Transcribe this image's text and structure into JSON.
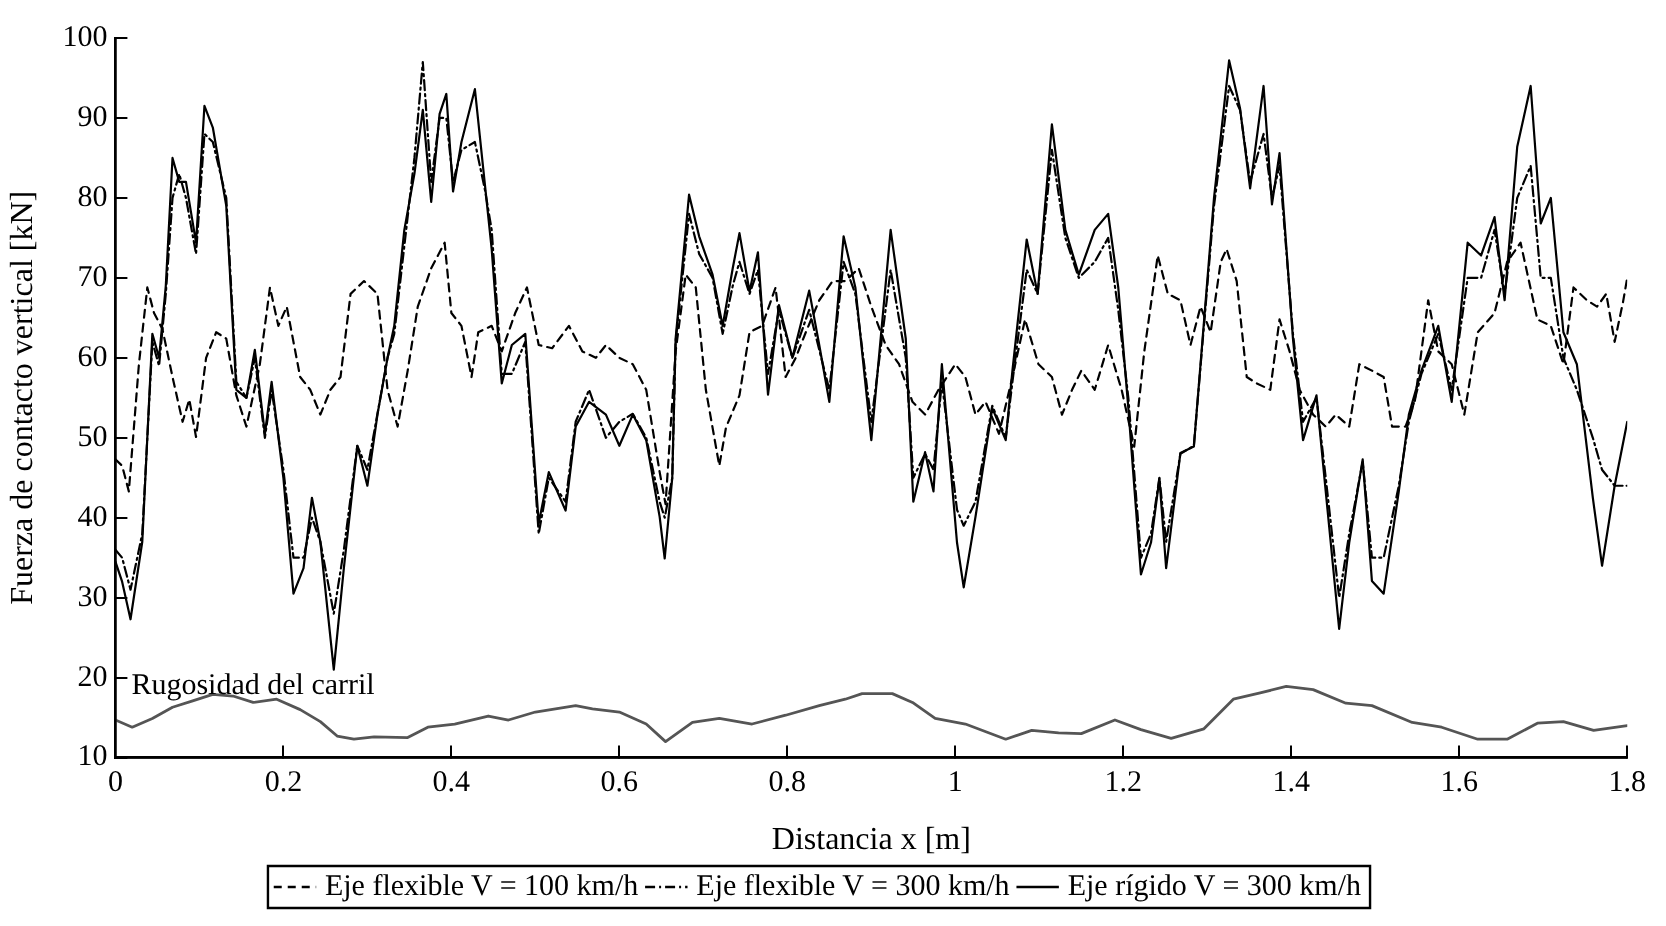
{
  "chart_data": {
    "type": "line",
    "xlabel": "Distancia x [m]",
    "ylabel": "Fuerza de contacto vertical [kN]",
    "xlim": [
      0,
      1.8
    ],
    "xticks": [
      0,
      0.2,
      0.4,
      0.6,
      0.8,
      1,
      1.2,
      1.4,
      1.6,
      1.8
    ],
    "ylim": [
      10,
      100
    ],
    "yticks": [
      10,
      20,
      30,
      40,
      50,
      60,
      70,
      80,
      90,
      100
    ],
    "grid": false,
    "legend": "bottom",
    "marker": "none",
    "annotations": [
      "Rugosidad del carril"
    ],
    "series": [
      {
        "name": "Eje flexible V = 100 km/h",
        "color": "#000000",
        "line_style": "dashed",
        "x": [
          0,
          0.008,
          0.016,
          0.028,
          0.038,
          0.046,
          0.056,
          0.068,
          0.08,
          0.088,
          0.096,
          0.108,
          0.12,
          0.132,
          0.144,
          0.156,
          0.172,
          0.184,
          0.194,
          0.204,
          0.22,
          0.232,
          0.244,
          0.256,
          0.268,
          0.28,
          0.296,
          0.312,
          0.324,
          0.336,
          0.348,
          0.36,
          0.376,
          0.392,
          0.4,
          0.412,
          0.424,
          0.432,
          0.448,
          0.46,
          0.476,
          0.49,
          0.504,
          0.52,
          0.54,
          0.556,
          0.572,
          0.584,
          0.6,
          0.616,
          0.632,
          0.648,
          0.655,
          0.667,
          0.679,
          0.691,
          0.703,
          0.719,
          0.727,
          0.743,
          0.755,
          0.77,
          0.786,
          0.798,
          0.81,
          0.822,
          0.838,
          0.854,
          0.869,
          0.885,
          0.9,
          0.917,
          0.933,
          0.949,
          0.964,
          0.98,
          1.0,
          1.012,
          1.024,
          1.036,
          1.052,
          1.068,
          1.083,
          1.099,
          1.115,
          1.127,
          1.139,
          1.15,
          1.166,
          1.182,
          1.198,
          1.213,
          1.225,
          1.241,
          1.253,
          1.268,
          1.28,
          1.292,
          1.304,
          1.316,
          1.323,
          1.335,
          1.347,
          1.359,
          1.375,
          1.386,
          1.398,
          1.41,
          1.426,
          1.441,
          1.453,
          1.469,
          1.481,
          1.496,
          1.51,
          1.52,
          1.536,
          1.547,
          1.563,
          1.575,
          1.591,
          1.606,
          1.622,
          1.642,
          1.657,
          1.673,
          1.693,
          1.709,
          1.724,
          1.736,
          1.752,
          1.764,
          1.775,
          1.785,
          1.795,
          1.8
        ],
        "values": [
          47.3,
          46.5,
          43.3,
          59.2,
          68.8,
          65.6,
          63.6,
          57.6,
          52,
          54.8,
          50.1,
          60,
          63.2,
          62.4,
          55.3,
          51.4,
          59.2,
          68.8,
          64,
          66.4,
          57.6,
          56,
          52.9,
          56,
          57.6,
          68,
          69.6,
          68,
          56,
          51.4,
          58.4,
          66.4,
          71.2,
          74.4,
          65.6,
          64,
          57.6,
          63.2,
          64,
          60.8,
          65.6,
          68.8,
          61.6,
          61.2,
          64,
          60.8,
          60,
          61.6,
          60,
          59.2,
          56,
          45.7,
          41.7,
          60.8,
          70.4,
          68.8,
          56,
          46.5,
          51.3,
          55.3,
          63.2,
          64,
          68.8,
          57.6,
          60,
          63.2,
          67.2,
          69.6,
          69.6,
          71.2,
          66.4,
          61.6,
          59.2,
          54.5,
          52.9,
          56,
          59.2,
          57.6,
          52.9,
          54.5,
          50.5,
          57.6,
          64.8,
          59.2,
          57.6,
          52.9,
          56,
          58.4,
          56,
          61.6,
          56,
          48.9,
          60.8,
          72.8,
          68,
          67.2,
          61.6,
          66.4,
          63.2,
          72,
          73.6,
          69.6,
          57.6,
          56.8,
          56,
          64.8,
          60.8,
          56,
          52.9,
          51.4,
          52.9,
          51.4,
          59.2,
          58.4,
          57.6,
          51.4,
          51.4,
          54.5,
          67.2,
          60.8,
          59.2,
          52.9,
          63.2,
          65.6,
          72,
          74.4,
          64.8,
          64,
          59.2,
          68.8,
          67.2,
          66.4,
          68,
          62,
          67,
          70
        ]
      },
      {
        "name": "Eje flexible V = 300 km/h",
        "color": "#000000",
        "line_style": "dashdot",
        "x": [
          0,
          0.008,
          0.018,
          0.032,
          0.044,
          0.052,
          0.06,
          0.068,
          0.076,
          0.084,
          0.096,
          0.106,
          0.116,
          0.132,
          0.144,
          0.156,
          0.166,
          0.178,
          0.186,
          0.2,
          0.212,
          0.224,
          0.234,
          0.244,
          0.26,
          0.272,
          0.288,
          0.3,
          0.312,
          0.324,
          0.332,
          0.344,
          0.356,
          0.366,
          0.376,
          0.386,
          0.394,
          0.402,
          0.412,
          0.428,
          0.44,
          0.448,
          0.46,
          0.472,
          0.488,
          0.504,
          0.516,
          0.536,
          0.548,
          0.564,
          0.584,
          0.6,
          0.616,
          0.632,
          0.648,
          0.654,
          0.663,
          0.667,
          0.683,
          0.695,
          0.711,
          0.723,
          0.735,
          0.743,
          0.755,
          0.765,
          0.777,
          0.79,
          0.806,
          0.826,
          0.838,
          0.85,
          0.867,
          0.881,
          0.9,
          0.923,
          0.941,
          0.95,
          0.964,
          0.974,
          0.984,
          1.002,
          1.01,
          1.024,
          1.044,
          1.06,
          1.068,
          1.085,
          1.098,
          1.115,
          1.131,
          1.147,
          1.166,
          1.182,
          1.194,
          1.206,
          1.221,
          1.233,
          1.243,
          1.251,
          1.268,
          1.284,
          1.308,
          1.326,
          1.339,
          1.351,
          1.367,
          1.377,
          1.386,
          1.402,
          1.414,
          1.43,
          1.441,
          1.457,
          1.469,
          1.485,
          1.496,
          1.51,
          1.528,
          1.54,
          1.555,
          1.575,
          1.591,
          1.61,
          1.626,
          1.642,
          1.654,
          1.669,
          1.685,
          1.697,
          1.709,
          1.724,
          1.74,
          1.759,
          1.77,
          1.785,
          1.8
        ],
        "values": [
          36,
          35,
          31,
          38,
          62,
          59,
          68,
          80,
          83,
          80,
          73,
          88,
          87,
          80,
          57,
          55,
          60,
          50,
          56,
          46,
          35,
          35,
          40,
          37,
          28,
          36,
          49,
          46,
          53,
          60,
          63,
          74,
          85,
          97,
          82,
          90,
          90,
          82,
          86,
          87,
          81,
          76,
          58,
          58,
          62,
          38,
          45,
          42,
          52,
          56,
          50,
          52,
          53,
          50,
          42,
          40,
          45,
          62,
          78,
          73,
          70,
          63,
          69,
          72,
          68,
          71,
          58,
          66,
          60,
          66,
          61,
          56,
          72,
          68,
          52,
          71,
          60,
          45,
          48,
          46,
          57,
          41,
          39,
          42,
          54,
          50,
          57,
          71,
          68,
          86,
          75,
          70,
          72,
          75,
          66,
          55,
          35,
          38,
          45,
          37,
          48,
          49,
          79,
          94,
          91,
          82,
          88,
          80,
          84,
          63,
          52,
          55,
          45,
          30,
          38,
          47,
          35,
          35,
          44,
          52,
          58,
          63,
          56,
          70,
          70,
          76,
          68,
          80,
          84,
          70,
          70,
          60,
          56,
          50,
          46,
          44,
          44
        ]
      },
      {
        "name": "Eje rígido V = 300 km/h",
        "color": "#000000",
        "line_style": "solid",
        "x": [
          0,
          0.008,
          0.018,
          0.032,
          0.044,
          0.052,
          0.06,
          0.068,
          0.076,
          0.084,
          0.096,
          0.106,
          0.116,
          0.132,
          0.144,
          0.156,
          0.166,
          0.178,
          0.186,
          0.2,
          0.212,
          0.224,
          0.234,
          0.244,
          0.26,
          0.272,
          0.288,
          0.3,
          0.312,
          0.324,
          0.332,
          0.344,
          0.356,
          0.366,
          0.376,
          0.386,
          0.394,
          0.402,
          0.412,
          0.428,
          0.44,
          0.448,
          0.46,
          0.472,
          0.488,
          0.504,
          0.516,
          0.536,
          0.548,
          0.564,
          0.584,
          0.6,
          0.616,
          0.632,
          0.648,
          0.654,
          0.663,
          0.667,
          0.683,
          0.695,
          0.711,
          0.723,
          0.735,
          0.743,
          0.755,
          0.765,
          0.777,
          0.79,
          0.806,
          0.826,
          0.838,
          0.85,
          0.867,
          0.881,
          0.9,
          0.923,
          0.941,
          0.95,
          0.964,
          0.974,
          0.984,
          1.002,
          1.01,
          1.024,
          1.044,
          1.06,
          1.068,
          1.085,
          1.098,
          1.115,
          1.131,
          1.147,
          1.166,
          1.182,
          1.194,
          1.206,
          1.221,
          1.233,
          1.243,
          1.251,
          1.268,
          1.284,
          1.308,
          1.326,
          1.339,
          1.351,
          1.367,
          1.377,
          1.386,
          1.402,
          1.414,
          1.43,
          1.441,
          1.457,
          1.469,
          1.485,
          1.496,
          1.51,
          1.528,
          1.54,
          1.555,
          1.575,
          1.591,
          1.61,
          1.626,
          1.642,
          1.654,
          1.669,
          1.685,
          1.697,
          1.709,
          1.724,
          1.74,
          1.759,
          1.77,
          1.785,
          1.8
        ],
        "values": [
          34.5,
          32,
          27.3,
          37,
          63,
          60,
          69,
          85,
          82,
          82,
          74.4,
          91.5,
          88.8,
          79,
          56,
          55,
          61,
          50.5,
          57,
          45,
          30.5,
          33.7,
          42.5,
          37,
          21,
          33.7,
          49,
          44,
          52.9,
          60,
          64,
          76,
          83,
          91,
          79.5,
          90.5,
          93,
          80.8,
          87,
          93.6,
          81.6,
          73.6,
          56.8,
          61.6,
          63,
          39.3,
          45.7,
          40.9,
          51.4,
          54.5,
          52.9,
          49,
          52.9,
          49.7,
          40.1,
          34.9,
          45,
          62.4,
          80.4,
          75.2,
          70.4,
          64,
          71.2,
          75.6,
          68.3,
          73.2,
          55.4,
          66.6,
          60,
          68.4,
          61.6,
          54.5,
          75.2,
          68.8,
          49.7,
          76,
          62.4,
          42,
          48.2,
          43.3,
          59.2,
          36.9,
          31.3,
          40.1,
          53.7,
          49.7,
          58.4,
          74.8,
          68,
          89.2,
          76,
          70.4,
          76,
          78,
          68.8,
          53.7,
          32.9,
          36.9,
          44.9,
          33.7,
          48.1,
          48.9,
          80,
          97.2,
          91.2,
          81.2,
          94,
          79.2,
          85.6,
          62.4,
          49.7,
          55.3,
          43.3,
          26.1,
          36.9,
          47.3,
          32.1,
          30.5,
          43.3,
          52.9,
          58.4,
          64,
          54.5,
          74.4,
          72.8,
          77.6,
          67.2,
          86.4,
          94,
          76.8,
          80,
          63.2,
          59.2,
          42.5,
          34,
          44,
          52
        ]
      },
      {
        "color": "#555555",
        "line_style": "solid",
        "x": [
          0,
          0.02,
          0.044,
          0.068,
          0.092,
          0.116,
          0.14,
          0.164,
          0.192,
          0.22,
          0.244,
          0.264,
          0.284,
          0.308,
          0.348,
          0.372,
          0.404,
          0.444,
          0.468,
          0.5,
          0.548,
          0.568,
          0.6,
          0.632,
          0.655,
          0.687,
          0.719,
          0.758,
          0.798,
          0.838,
          0.869,
          0.889,
          0.925,
          0.949,
          0.976,
          1.012,
          1.06,
          1.091,
          1.123,
          1.15,
          1.19,
          1.221,
          1.257,
          1.296,
          1.331,
          1.363,
          1.394,
          1.426,
          1.465,
          1.496,
          1.544,
          1.579,
          1.622,
          1.657,
          1.693,
          1.724,
          1.76,
          1.8
        ],
        "values": [
          14.7,
          13.8,
          14.9,
          16.3,
          17.1,
          17.9,
          17.7,
          16.9,
          17.3,
          16,
          14.5,
          12.7,
          12.3,
          12.6,
          12.5,
          13.8,
          14.2,
          15.2,
          14.7,
          15.7,
          16.5,
          16.1,
          15.7,
          14.2,
          12,
          14.4,
          14.9,
          14.2,
          15.3,
          16.5,
          17.3,
          18,
          18,
          16.9,
          14.9,
          14.2,
          12.3,
          13.4,
          13.1,
          13,
          14.7,
          13.5,
          12.4,
          13.6,
          17.3,
          18.1,
          18.9,
          18.5,
          16.8,
          16.5,
          14.4,
          13.8,
          12.3,
          12.3,
          14.3,
          14.5,
          13.4,
          14
        ]
      }
    ]
  }
}
